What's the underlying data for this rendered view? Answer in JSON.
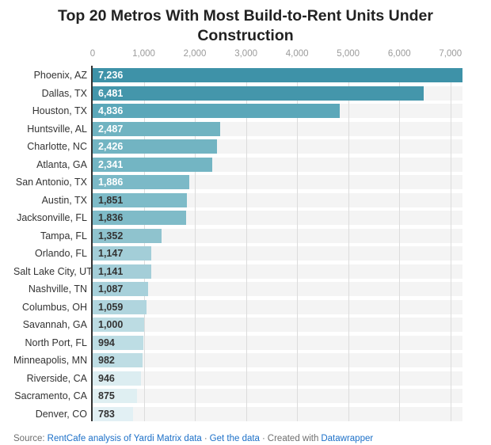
{
  "title": "Top 20 Metros With Most Build-to-Rent Units Under Construction",
  "footer": {
    "source_label": "Source:",
    "source_link": "RentCafe analysis of Yardi Matrix data",
    "separator": "·",
    "get_data_link": "Get the data",
    "created_with": "Created with",
    "datawrapper_link": "Datawrapper"
  },
  "colors": {
    "title": "#222222",
    "axis_line": "#333333",
    "gridline": "#dcdcdc",
    "row_track": "#f4f4f4",
    "tick_label": "#9b9b9b",
    "row_label": "#333333",
    "link": "#1c70c8",
    "footer_text": "#6e6e6e"
  },
  "chart_data": {
    "type": "bar",
    "orientation": "horizontal",
    "title": "Top 20 Metros With Most Build-to-Rent Units Under Construction",
    "xlabel": "",
    "ylabel": "",
    "xmax": 7236,
    "grid": true,
    "legend_position": "none",
    "x_ticks": [
      {
        "value": 0,
        "label": "0"
      },
      {
        "value": 1000,
        "label": "1,000"
      },
      {
        "value": 2000,
        "label": "2,000"
      },
      {
        "value": 3000,
        "label": "3,000"
      },
      {
        "value": 4000,
        "label": "4,000"
      },
      {
        "value": 5000,
        "label": "5,000"
      },
      {
        "value": 6000,
        "label": "6,000"
      },
      {
        "value": 7000,
        "label": "7,000"
      }
    ],
    "categories": [
      "Phoenix, AZ",
      "Dallas, TX",
      "Houston, TX",
      "Huntsville, AL",
      "Charlotte, NC",
      "Atlanta, GA",
      "San Antonio, TX",
      "Austin, TX",
      "Jacksonville, FL",
      "Tampa, FL",
      "Orlando, FL",
      "Salt Lake City, UT",
      "Nashville, TN",
      "Columbus, OH",
      "Savannah, GA",
      "North Port, FL",
      "Minneapolis, MN",
      "Riverside, CA",
      "Sacramento, CA",
      "Denver, CO"
    ],
    "values": [
      7236,
      6481,
      4836,
      2487,
      2426,
      2341,
      1886,
      1851,
      1836,
      1352,
      1147,
      1141,
      1087,
      1059,
      1000,
      994,
      982,
      946,
      875,
      783
    ],
    "rows": [
      {
        "metro": "Phoenix, AZ",
        "value": 7236,
        "value_label": "7,236",
        "bar_color": "#3E92A8",
        "value_text_color": "#FFFFFF"
      },
      {
        "metro": "Dallas, TX",
        "value": 6481,
        "value_label": "6,481",
        "bar_color": "#4496AB",
        "value_text_color": "#FFFFFF"
      },
      {
        "metro": "Houston, TX",
        "value": 4836,
        "value_label": "4,836",
        "bar_color": "#5BA7B9",
        "value_text_color": "#FFFFFF"
      },
      {
        "metro": "Huntsville, AL",
        "value": 2487,
        "value_label": "2,487",
        "bar_color": "#70B3C1",
        "value_text_color": "#FFFFFF"
      },
      {
        "metro": "Charlotte, NC",
        "value": 2426,
        "value_label": "2,426",
        "bar_color": "#72B4C2",
        "value_text_color": "#FFFFFF"
      },
      {
        "metro": "Atlanta, GA",
        "value": 2341,
        "value_label": "2,341",
        "bar_color": "#73B5C3",
        "value_text_color": "#FFFFFF"
      },
      {
        "metro": "San Antonio, TX",
        "value": 1886,
        "value_label": "1,886",
        "bar_color": "#7BB9C7",
        "value_text_color": "#FFFFFF"
      },
      {
        "metro": "Austin, TX",
        "value": 1851,
        "value_label": "1,851",
        "bar_color": "#7EBBC8",
        "value_text_color": "#333333"
      },
      {
        "metro": "Jacksonville, FL",
        "value": 1836,
        "value_label": "1,836",
        "bar_color": "#7FBBC8",
        "value_text_color": "#333333"
      },
      {
        "metro": "Tampa, FL",
        "value": 1352,
        "value_label": "1,352",
        "bar_color": "#8FC3CE",
        "value_text_color": "#333333"
      },
      {
        "metro": "Orlando, FL",
        "value": 1147,
        "value_label": "1,147",
        "bar_color": "#A3CED8",
        "value_text_color": "#333333"
      },
      {
        "metro": "Salt Lake City, UT",
        "value": 1141,
        "value_label": "1,141",
        "bar_color": "#A4CED8",
        "value_text_color": "#333333"
      },
      {
        "metro": "Nashville, TN",
        "value": 1087,
        "value_label": "1,087",
        "bar_color": "#A7D0DA",
        "value_text_color": "#333333"
      },
      {
        "metro": "Columbus, OH",
        "value": 1059,
        "value_label": "1,059",
        "bar_color": "#B0D5DE",
        "value_text_color": "#333333"
      },
      {
        "metro": "Savannah, GA",
        "value": 1000,
        "value_label": "1,000",
        "bar_color": "#BCDCE3",
        "value_text_color": "#333333"
      },
      {
        "metro": "North Port, FL",
        "value": 994,
        "value_label": "994",
        "bar_color": "#BDDDE4",
        "value_text_color": "#333333"
      },
      {
        "metro": "Minneapolis, MN",
        "value": 982,
        "value_label": "982",
        "bar_color": "#BEDDE4",
        "value_text_color": "#333333"
      },
      {
        "metro": "Riverside, CA",
        "value": 946,
        "value_label": "946",
        "bar_color": "#DCEDF1",
        "value_text_color": "#333333"
      },
      {
        "metro": "Sacramento, CA",
        "value": 875,
        "value_label": "875",
        "bar_color": "#DFEFF2",
        "value_text_color": "#333333"
      },
      {
        "metro": "Denver, CO",
        "value": 783,
        "value_label": "783",
        "bar_color": "#E2F0F4",
        "value_text_color": "#333333"
      }
    ]
  }
}
